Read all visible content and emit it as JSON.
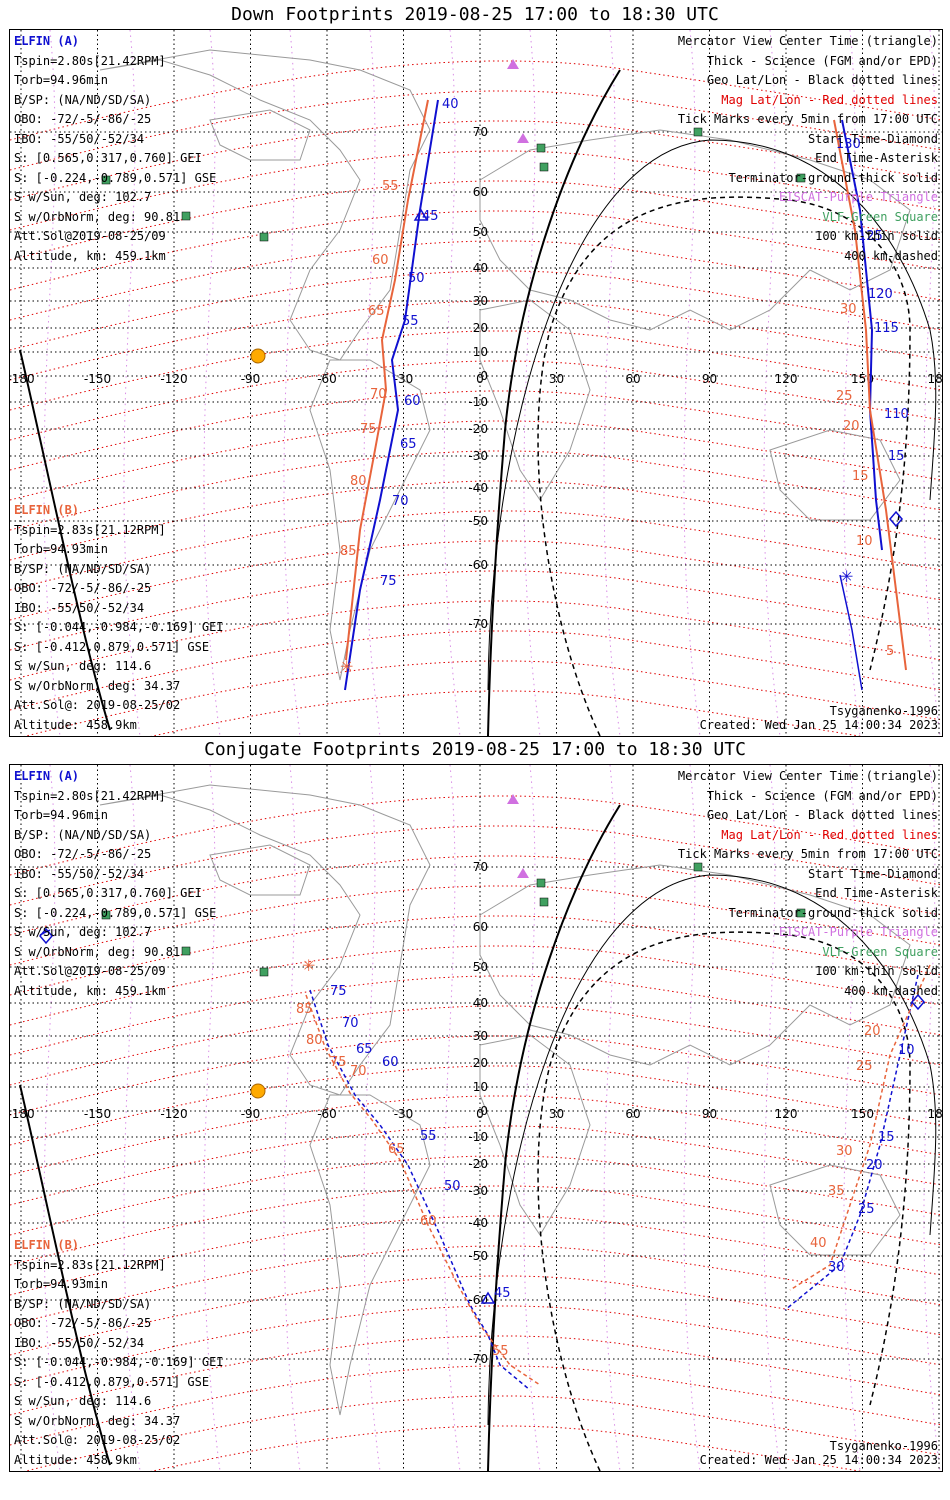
{
  "panels": [
    {
      "title": "Down Footprints 2019-08-25 17:00 to 18:30 UTC",
      "sat_a": {
        "name": "ELFIN (A)",
        "lines": [
          "Tspin=2.80s[21.42RPM]",
          "Torb=94.96min",
          "B/SP: (NA/ND/SD/SA)",
          "OBO: -72/-5/-86/-25",
          "IBO: -55/50/-52/34",
          "S: [0.565,0.317,0.760] GEI",
          "S: [-0.224,-0.789,0.571] GSE",
          "S w/Sun, deg: 102.7",
          "S w/OrbNorm, deg: 90.81",
          "Att.Sol@2019-08-25/09",
          "Altitude, km: 459.1km"
        ]
      },
      "sat_b": {
        "name": "ELFIN (B)",
        "lines": [
          "Tspin=2.83s[21.12RPM]",
          "Torb=94.93min",
          "B/SP: (NA/ND/SD/SA)",
          "OBO: -72/-5/-86/-25",
          "IBO: -55/50/-52/34",
          "S: [-0.044,-0.984,-0.169] GEI",
          "S: [-0.412,0.879,0.571] GSE",
          "S w/Sun, deg: 114.6",
          "S w/OrbNorm, deg: 34.37",
          "Att.Sol@: 2019-08-25/02",
          "Altitude: 458.9km"
        ]
      },
      "legend": {
        "l1": "Mercator View Center Time (triangle)",
        "l2": "Thick - Science (FGM and/or EPD)",
        "l3": "Geo Lat/Lon - Black dotted lines",
        "l4": "Mag Lat/Lon - Red dotted lines",
        "l5": "Tick Marks every 5min from 17:00 UTC",
        "l6": "Start Time-Diamond",
        "l7": "End Time-Asterisk",
        "l8": "Terminator-ground-thick solid",
        "l9": "EISCAT-Purple Triangle",
        "l10": "VLF-Green Square",
        "l11": "100 km-thin solid",
        "l12": "400 km-dashed"
      },
      "model": "Tsyganenko-1996",
      "created": "Created: Wed Jan 25 14:00:34 2023",
      "lon_ticks": [
        "-180",
        "-150",
        "-120",
        "-90",
        "-60",
        "-30",
        "0",
        "30",
        "60",
        "90",
        "120",
        "150",
        "180"
      ],
      "lat_ticks": [
        "70",
        "60",
        "50",
        "40",
        "30",
        "20",
        "10",
        "0",
        "-10",
        "-20",
        "-30",
        "-40",
        "-50",
        "-60",
        "-70"
      ],
      "track_a_labels": [
        "40",
        "45",
        "50",
        "55",
        "60",
        "65",
        "70",
        "75",
        "130",
        "125",
        "120",
        "115",
        "110",
        "15"
      ],
      "track_b_labels": [
        "55",
        "60",
        "65",
        "70",
        "75",
        "80",
        "85",
        "30",
        "25",
        "20",
        "15",
        "10",
        "5"
      ]
    },
    {
      "title": "Conjugate Footprints 2019-08-25 17:00 to 18:30 UTC",
      "sat_a": {
        "name": "ELFIN (A)",
        "lines": [
          "Tspin=2.80s[21.42RPM]",
          "Torb=94.96min",
          "B/SP: (NA/ND/SD/SA)",
          "OBO: -72/-5/-86/-25",
          "IBO: -55/50/-52/34",
          "S: [0.565,0.317,0.760] GEI",
          "S: [-0.224,-0.789,0.571] GSE",
          "S w/Sun, deg: 102.7",
          "S w/OrbNorm, deg: 90.81",
          "Att.Sol@2019-08-25/09",
          "Altitude, km: 459.1km"
        ]
      },
      "sat_b": {
        "name": "ELFIN (B)",
        "lines": [
          "Tspin=2.83s[21.12RPM]",
          "Torb=94.93min",
          "B/SP: (NA/ND/SD/SA)",
          "OBO: -72/-5/-86/-25",
          "IBO: -55/50/-52/34",
          "S: [-0.044,-0.984,-0.169] GEI",
          "S: [-0.412,0.879,0.571] GSE",
          "S w/Sun, deg: 114.6",
          "S w/OrbNorm, deg: 34.37",
          "Att.Sol@: 2019-08-25/02",
          "Altitude: 458.9km"
        ]
      },
      "legend": {
        "l1": "Mercator View Center Time (triangle)",
        "l2": "Thick - Science (FGM and/or EPD)",
        "l3": "Geo Lat/Lon - Black dotted lines",
        "l4": "Mag Lat/Lon - Red dotted lines",
        "l5": "Tick Marks every 5min from 17:00 UTC",
        "l6": "Start Time-Diamond",
        "l7": "End Time-Asterisk",
        "l8": "Terminator-ground-thick solid",
        "l9": "EISCAT-Purple Triangle",
        "l10": "VLF-Green Square",
        "l11": "100 km-thin solid",
        "l12": "400 km-dashed"
      },
      "model": "Tsyganenko-1996",
      "created": "Created: Wed Jan 25 14:00:34 2023",
      "lon_ticks": [
        "-180",
        "-150",
        "-120",
        "-90",
        "-60",
        "-30",
        "0",
        "30",
        "60",
        "90",
        "120",
        "150",
        "180"
      ],
      "lat_ticks": [
        "70",
        "60",
        "50",
        "40",
        "30",
        "20",
        "10",
        "0",
        "-10",
        "-20",
        "-30",
        "-40",
        "-50",
        "-60",
        "-70"
      ],
      "track_a_labels": [
        "75",
        "70",
        "65",
        "60",
        "55",
        "50",
        "45",
        "10",
        "15",
        "20",
        "25",
        "30"
      ],
      "track_b_labels": [
        "85",
        "80",
        "75",
        "70",
        "65",
        "60",
        "55",
        "20",
        "25",
        "30",
        "35",
        "40"
      ]
    }
  ],
  "colors": {
    "sat_a": "#1010d0",
    "sat_b": "#e8643c",
    "mag_grid": "#e00000",
    "geo_grid": "#000000",
    "eiscat": "#d070e0",
    "vlf": "#40a060"
  }
}
